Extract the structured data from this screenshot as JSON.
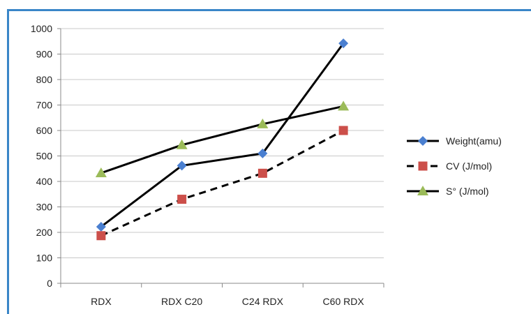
{
  "chart_data": {
    "type": "line",
    "categories": [
      "RDX",
      "RDX C20",
      "C24 RDX",
      "C60 RDX"
    ],
    "ylim": [
      0,
      1000
    ],
    "yticks": [
      "0",
      "100",
      "200",
      "300",
      "400",
      "500",
      "600",
      "700",
      "800",
      "900",
      "1000"
    ],
    "grid": true,
    "legend_position": "right",
    "series": [
      {
        "name": "Weight(amu)",
        "values": [
          222,
          462,
          510,
          942
        ],
        "color": "#4a7fd0",
        "marker": "diamond",
        "line": "solid"
      },
      {
        "name": "CV (J/mol)",
        "values": [
          187,
          330,
          432,
          600
        ],
        "color": "#cc4f4a",
        "marker": "square",
        "line": "dashed"
      },
      {
        "name": "S° (J/mol)",
        "values": [
          433,
          543,
          625,
          695
        ],
        "color": "#9bbb59",
        "marker": "triangle",
        "line": "solid"
      }
    ]
  }
}
